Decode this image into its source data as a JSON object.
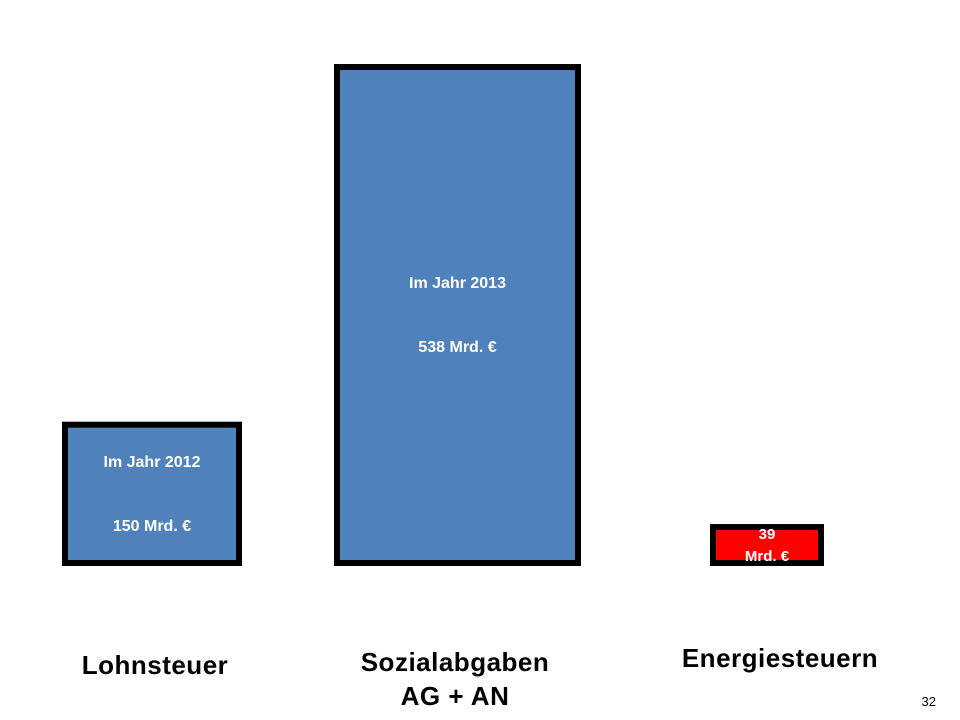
{
  "chart_data": {
    "type": "bar",
    "categories": [
      "Lohnsteuer",
      "Sozialabgaben AG + AN",
      "Energiesteuern"
    ],
    "values": [
      150,
      538,
      39
    ],
    "bar_labels": [
      {
        "line1": "Im Jahr 2012",
        "line2": "150 Mrd. €"
      },
      {
        "line1": "Im Jahr 2013",
        "line2": "538 Mrd. €"
      },
      {
        "line1": "39",
        "line2": "Mrd. €"
      }
    ],
    "colors": [
      "#4f81bd",
      "#4f81bd",
      "#ff0000"
    ],
    "edge_color": "#000000",
    "ylim": [
      0,
      538
    ],
    "grid": false,
    "legend": "none"
  },
  "labels": {
    "cat1": "Lohnsteuer",
    "cat2_line1": "Sozialabgaben",
    "cat2_line2": "AG + AN",
    "cat3": "Energiesteuern"
  },
  "page_number": "32"
}
